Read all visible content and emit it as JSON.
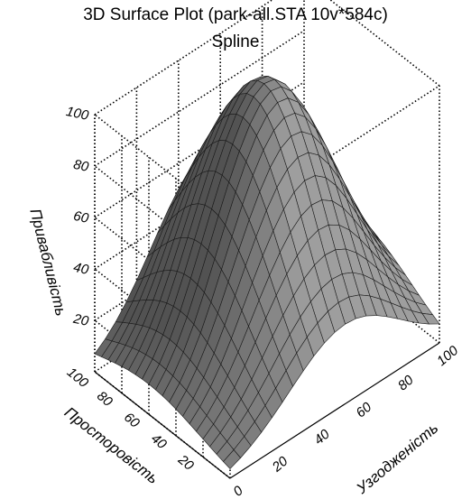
{
  "chart_data": {
    "type": "surface3d",
    "title": "3D Surface Plot (park-all.STA 10v*584c)",
    "subtitle": "Spline",
    "xlabel": "Узгодженість",
    "ylabel": "Просторовість",
    "zlabel": "Привабливість",
    "xlim": [
      0,
      100
    ],
    "ylim": [
      0,
      100
    ],
    "zlim": [
      0,
      100
    ],
    "x_ticks": [
      0,
      20,
      40,
      60,
      80,
      100
    ],
    "y_ticks": [
      20,
      40,
      60,
      80,
      100
    ],
    "z_ticks": [
      20,
      40,
      60,
      80,
      100
    ],
    "grid": true,
    "surface_color": "#808080",
    "peak": {
      "x": 55,
      "y": 60,
      "z": 100
    }
  }
}
